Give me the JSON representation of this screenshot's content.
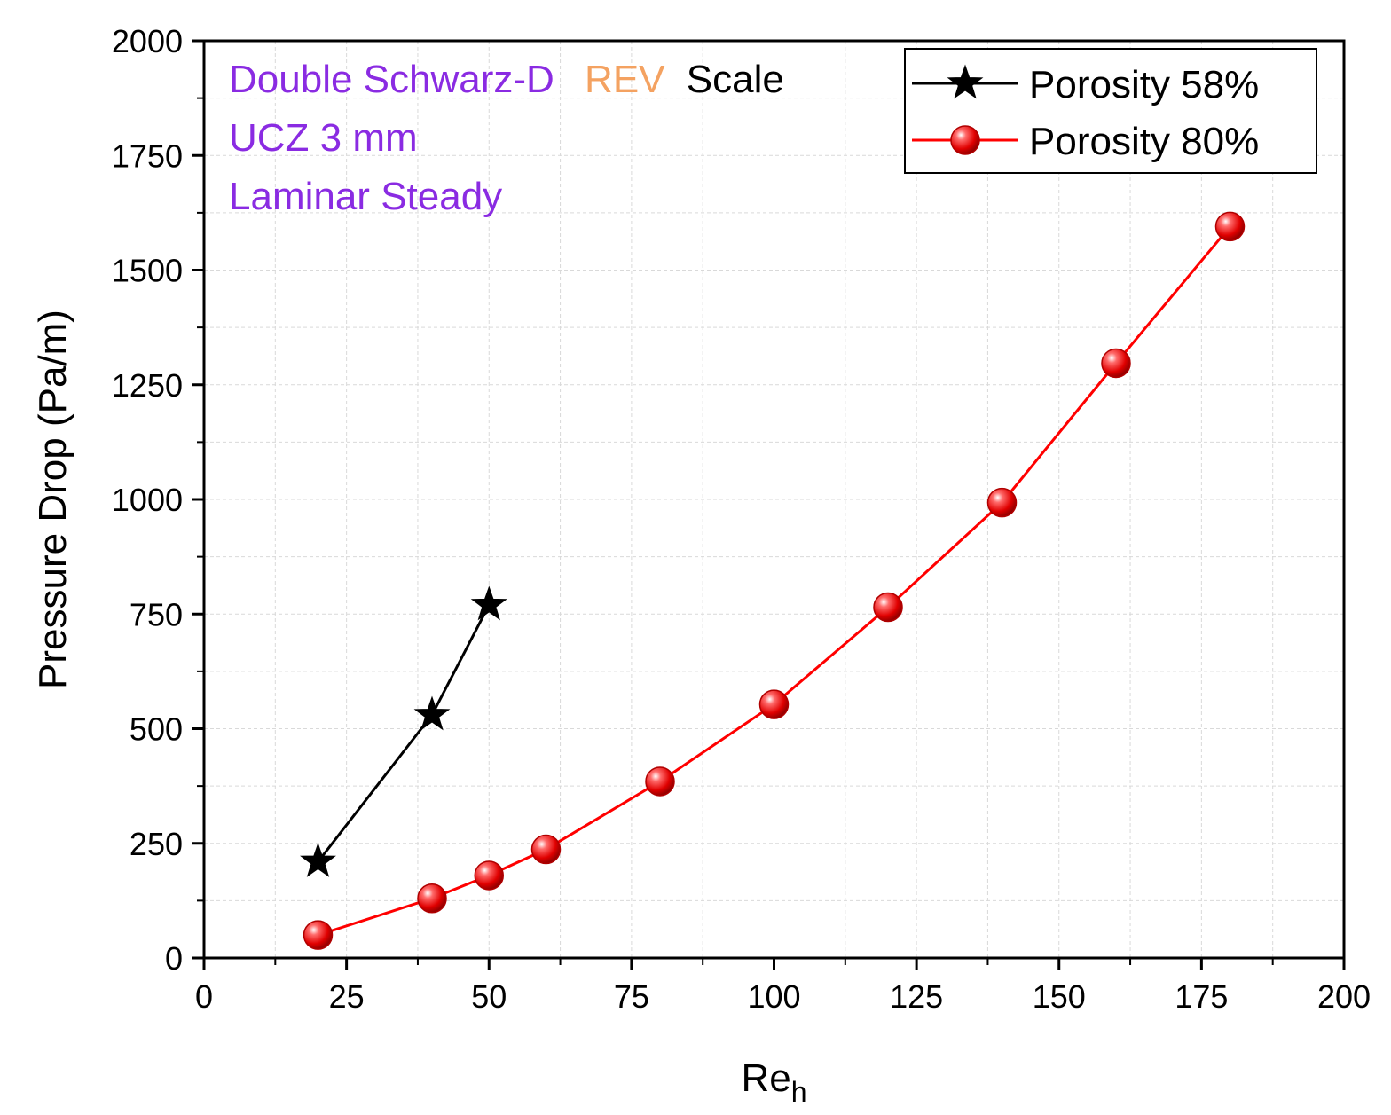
{
  "chart_data": {
    "type": "line",
    "xlabel": "Re",
    "xlabel_subscript": "h",
    "ylabel": "Pressure Drop (Pa/m)",
    "xlim": [
      0,
      200
    ],
    "ylim": [
      0,
      2000
    ],
    "xticks": [
      0,
      25,
      50,
      75,
      100,
      125,
      150,
      175,
      200
    ],
    "yticks": [
      0,
      250,
      500,
      750,
      1000,
      1250,
      1500,
      1750,
      2000
    ],
    "xtick_labels": [
      "0",
      "25",
      "50",
      "75",
      "100",
      "125",
      "150",
      "175",
      "200"
    ],
    "ytick_labels": [
      "0",
      "250",
      "500",
      "750",
      "1000",
      "1250",
      "1500",
      "1750",
      "2000"
    ],
    "grid": true,
    "legend_position": "top-right",
    "series": [
      {
        "name": "Porosity 58%",
        "color": "#000000",
        "marker": "star",
        "x": [
          20,
          40,
          50
        ],
        "y": [
          210,
          530,
          770
        ]
      },
      {
        "name": "Porosity 80%",
        "color": "#ff0000",
        "marker": "sphere",
        "x": [
          20,
          40,
          50,
          60,
          80,
          100,
          120,
          140,
          160,
          180
        ],
        "y": [
          50,
          130,
          180,
          237,
          385,
          553,
          765,
          993,
          1297,
          1595
        ]
      }
    ],
    "annotations": {
      "line1_part1": "Double Schwarz-D",
      "line1_part2": "REV",
      "line1_part3": "Scale",
      "line2": "UCZ 3 mm",
      "line3": "Laminar Steady"
    },
    "annotation_colors": {
      "purple": "#8a2be2",
      "orange": "#f4a261",
      "black": "#000000"
    }
  }
}
